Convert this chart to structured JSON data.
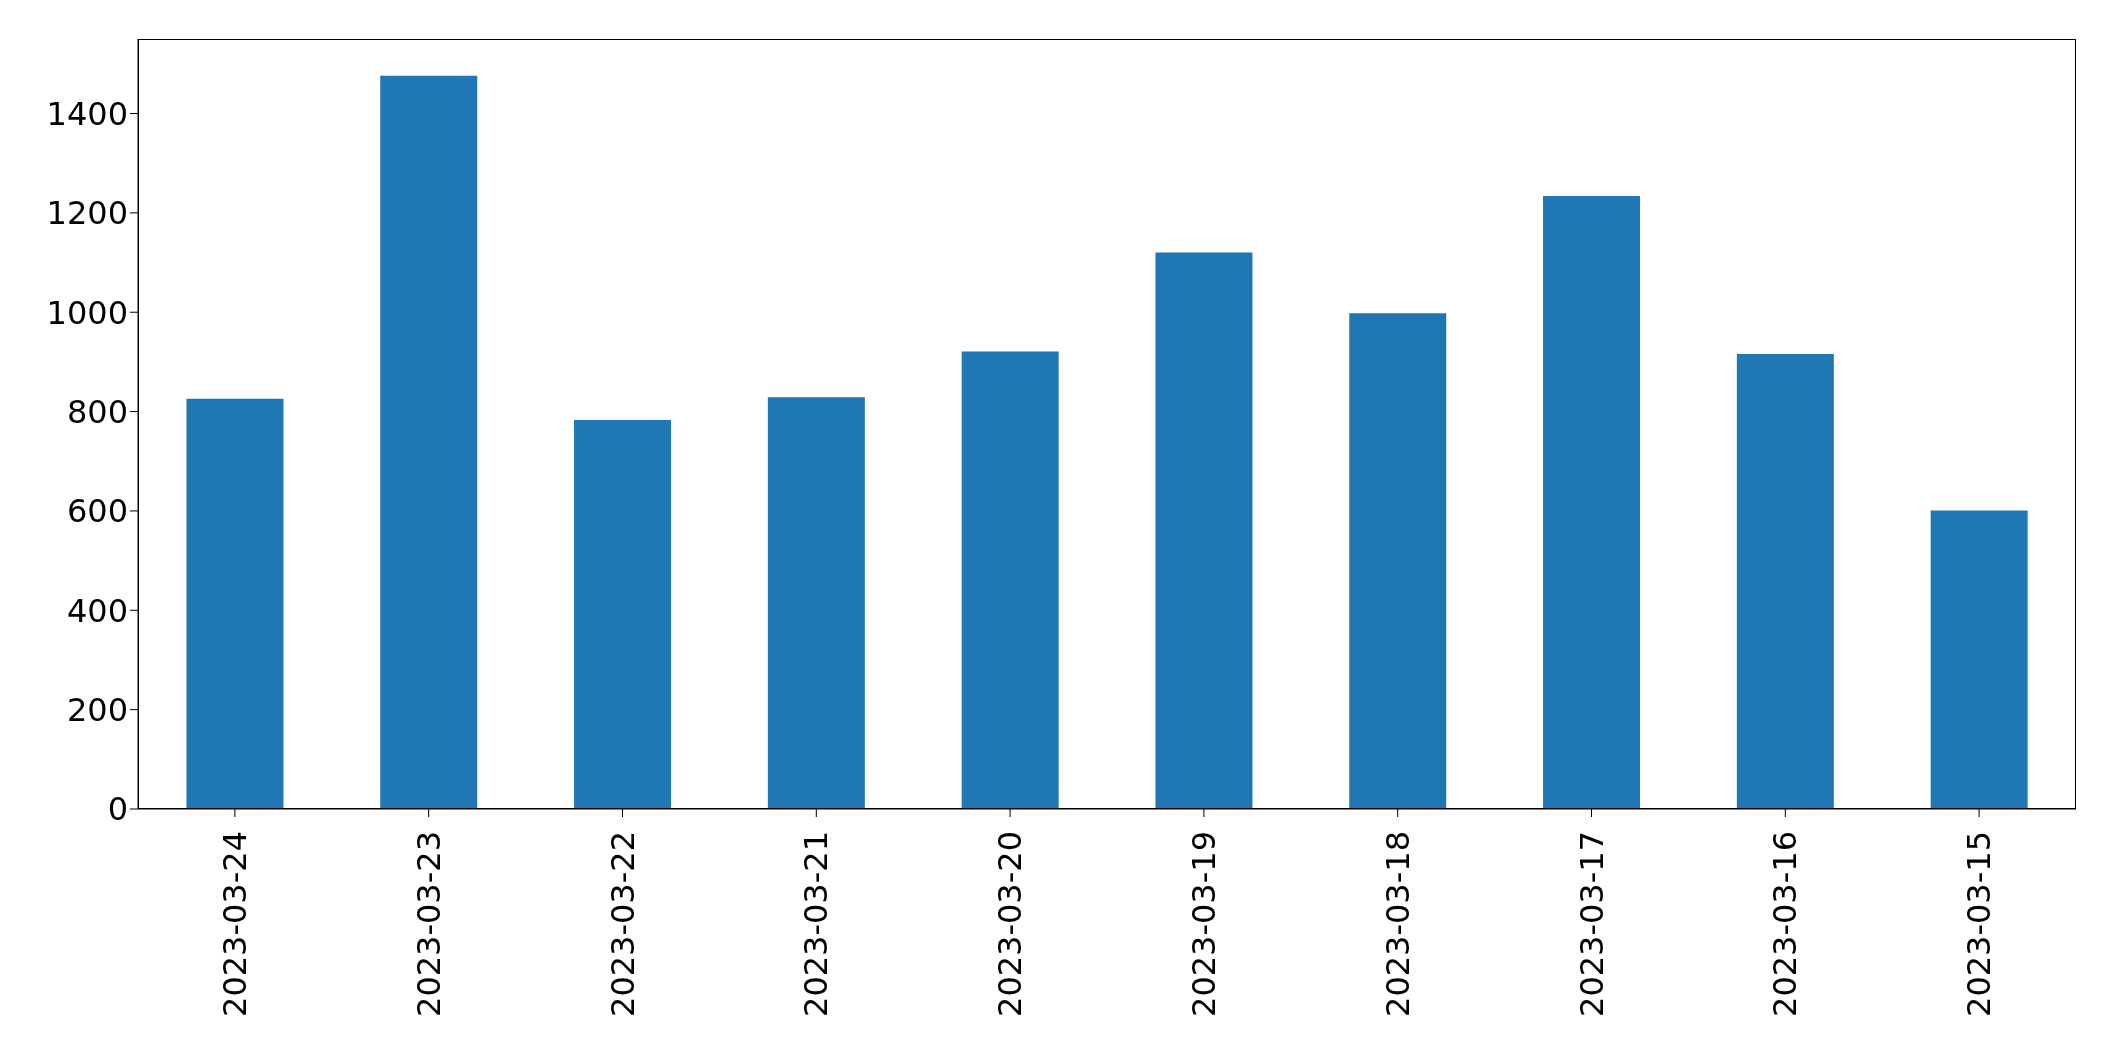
{
  "chart_data": {
    "type": "bar",
    "categories": [
      "2023-03-24",
      "2023-03-23",
      "2023-03-22",
      "2023-03-21",
      "2023-03-20",
      "2023-03-19",
      "2023-03-18",
      "2023-03-17",
      "2023-03-16",
      "2023-03-15"
    ],
    "values": [
      826,
      1476,
      783,
      829,
      921,
      1120,
      998,
      1234,
      916,
      601
    ],
    "color": "#1f77b4",
    "ylim": [
      0,
      1550
    ],
    "yticks": [
      0,
      200,
      400,
      600,
      800,
      1000,
      1200,
      1400
    ],
    "grid": false,
    "legend": false
  }
}
